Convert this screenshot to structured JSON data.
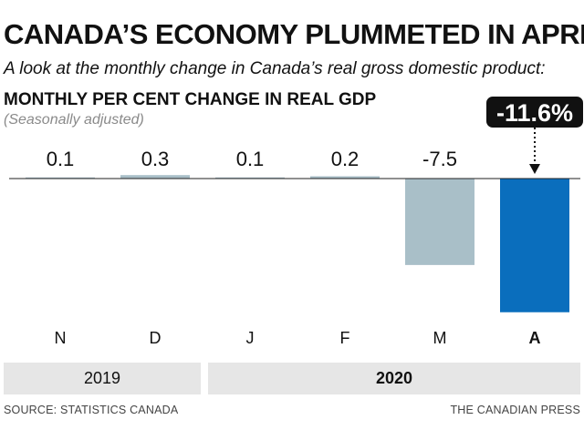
{
  "header": {
    "title": "CANADA’S ECONOMY PLUMMETED IN APRIL",
    "subtitle": "A look at the monthly change in Canada’s real gross domestic product:"
  },
  "chart_data": {
    "type": "bar",
    "title": "MONTHLY PER CENT CHANGE IN REAL GDP",
    "note": "(Seasonally adjusted)",
    "categories": [
      "N",
      "D",
      "J",
      "F",
      "M",
      "A"
    ],
    "values": [
      0.1,
      0.3,
      0.1,
      0.2,
      -7.5,
      -11.6
    ],
    "value_labels": [
      "0.1",
      "0.3",
      "0.1",
      "0.2",
      "-7.5",
      "-11.6%"
    ],
    "highlight_index": 5,
    "ylim": [
      -11.6,
      0.3
    ],
    "years": [
      {
        "label": "2019",
        "months": [
          "N",
          "D"
        ]
      },
      {
        "label": "2020",
        "months": [
          "J",
          "F",
          "M",
          "A"
        ]
      }
    ],
    "colors": {
      "bar": "#a9bfc8",
      "highlight": "#0a6ebd",
      "baseline": "#222222",
      "callout": "#111111"
    }
  },
  "footer": {
    "source": "SOURCE: STATISTICS CANADA",
    "credit": "THE CANADIAN PRESS"
  }
}
